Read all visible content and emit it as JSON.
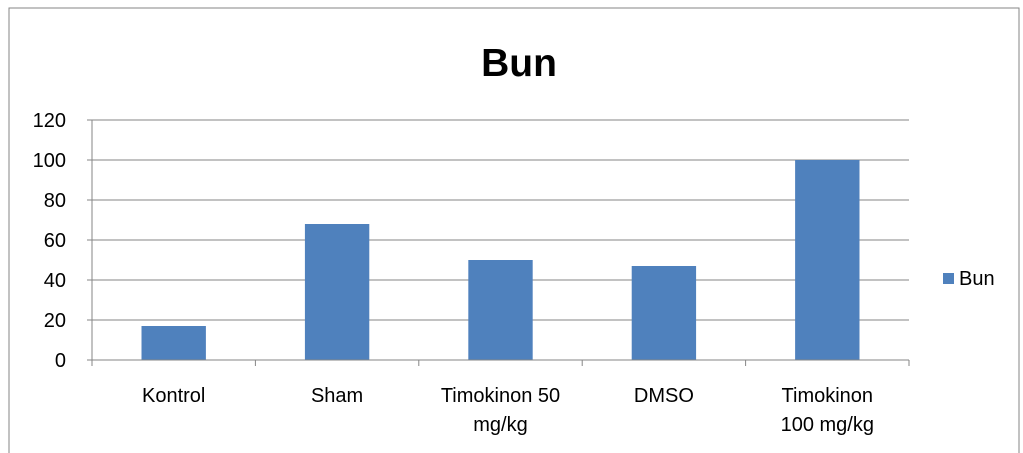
{
  "chart_data": {
    "type": "bar",
    "title": "Bun",
    "categories": [
      "Kontrol",
      "Sham",
      "Timokinon 50 mg/kg",
      "DMSO",
      "Timokinon 100 mg/kg"
    ],
    "category_lines": [
      [
        "Kontrol"
      ],
      [
        "Sham"
      ],
      [
        "Timokinon 50",
        "mg/kg"
      ],
      [
        "DMSO"
      ],
      [
        "Timokinon",
        "100 mg/kg"
      ]
    ],
    "series": [
      {
        "name": "Bun",
        "values": [
          17,
          68,
          50,
          47,
          100
        ]
      }
    ],
    "ylim": [
      0,
      120
    ],
    "yticks": [
      0,
      20,
      40,
      60,
      80,
      100,
      120
    ],
    "grid": true,
    "legend_position": "right",
    "colors": {
      "bar": "#4F81BD",
      "grid": "#868686",
      "axis": "#868686",
      "text": "#000000",
      "border": "#868686"
    }
  }
}
